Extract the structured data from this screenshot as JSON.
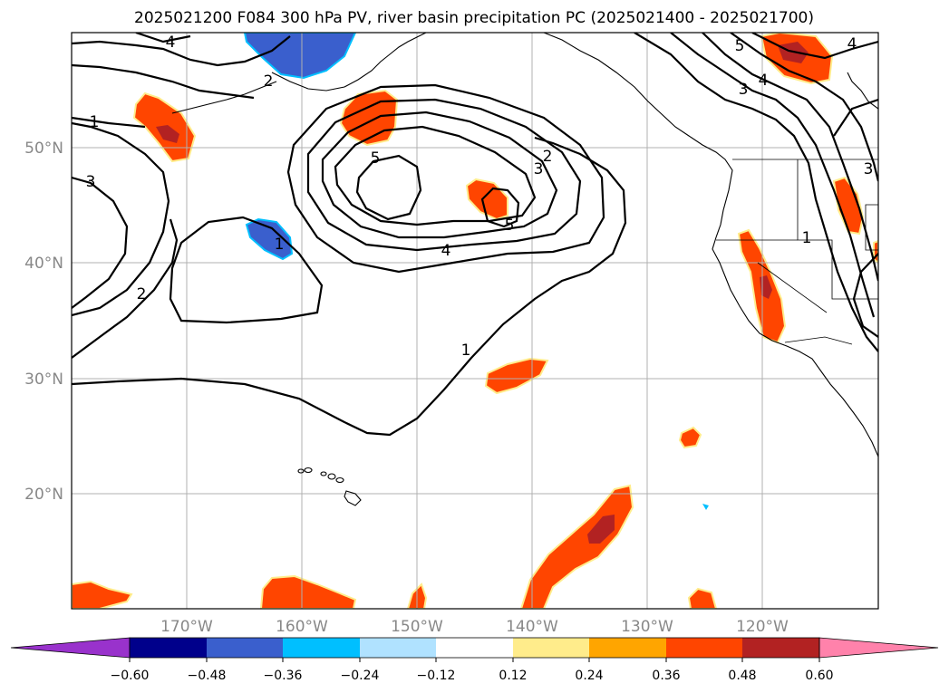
{
  "title": "2025021200 F084 300 hPa PV, river basin precipitation PC (2025021400 - 2025021700)",
  "lat_labels": [
    "50°N",
    "40°N",
    "30°N",
    "20°N"
  ],
  "lon_labels": [
    "170°W",
    "160°W",
    "150°W",
    "140°W",
    "130°W",
    "120°W"
  ],
  "colorbar": {
    "colors": [
      "#9932cc",
      "#00008b",
      "#3a5fcd",
      "#00bfff",
      "#b0e2ff",
      "#ffffff",
      "#ffec8b",
      "#ffa500",
      "#ff4500",
      "#b22222",
      "#ff82ab"
    ],
    "ticks": [
      "−0.60",
      "−0.48",
      "−0.36",
      "−0.24",
      "−0.12",
      "0.12",
      "0.24",
      "0.36",
      "0.48",
      "0.60"
    ]
  },
  "contour_labels": [
    "1",
    "2",
    "3",
    "4",
    "5",
    "1",
    "2",
    "3",
    "4",
    "5",
    "1",
    "2",
    "3",
    "4",
    "5",
    "3",
    "4",
    "1"
  ]
}
